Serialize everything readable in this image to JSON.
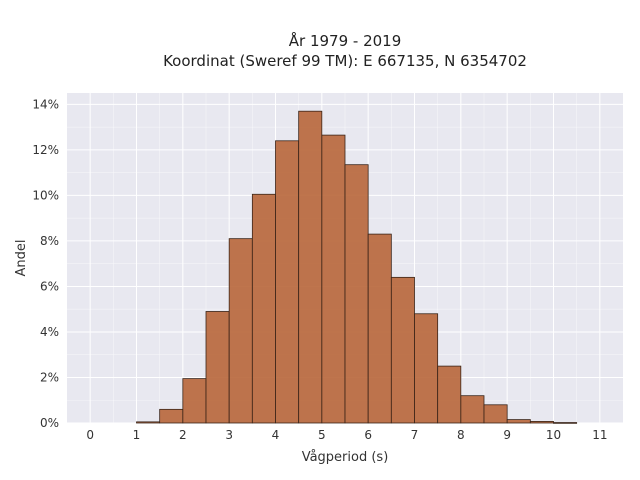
{
  "chart_data": {
    "type": "bar",
    "title": "År 1979 - 2019",
    "subtitle": "Koordinat (Sweref 99 TM): E 667135, N 6354702",
    "xlabel": "Vågperiod (s)",
    "ylabel": "Andel",
    "xlim": [
      -0.5,
      11.5
    ],
    "ylim": [
      0,
      14.5
    ],
    "x_ticks": [
      "0",
      "1",
      "2",
      "3",
      "4",
      "5",
      "6",
      "7",
      "8",
      "9",
      "10",
      "11"
    ],
    "y_ticks": [
      "0%",
      "2%",
      "4%",
      "6%",
      "8%",
      "10%",
      "12%",
      "14%"
    ],
    "bin_width": 0.5,
    "bins": [
      {
        "x0": 1.0,
        "value": 0.05
      },
      {
        "x0": 1.5,
        "value": 0.6
      },
      {
        "x0": 2.0,
        "value": 1.95
      },
      {
        "x0": 2.5,
        "value": 4.9
      },
      {
        "x0": 3.0,
        "value": 8.1
      },
      {
        "x0": 3.5,
        "value": 10.05
      },
      {
        "x0": 4.0,
        "value": 12.4
      },
      {
        "x0": 4.5,
        "value": 13.7
      },
      {
        "x0": 5.0,
        "value": 12.65
      },
      {
        "x0": 5.5,
        "value": 11.35
      },
      {
        "x0": 6.0,
        "value": 8.3
      },
      {
        "x0": 6.5,
        "value": 6.4
      },
      {
        "x0": 7.0,
        "value": 4.8
      },
      {
        "x0": 7.5,
        "value": 2.5
      },
      {
        "x0": 8.0,
        "value": 1.2
      },
      {
        "x0": 8.5,
        "value": 0.8
      },
      {
        "x0": 9.0,
        "value": 0.15
      },
      {
        "x0": 9.5,
        "value": 0.07
      },
      {
        "x0": 10.0,
        "value": 0.02
      }
    ],
    "grid": true,
    "colors": {
      "bar_fill": "#b8663a",
      "bar_stroke": "#3a2418",
      "plot_bg": "#e8e8f0",
      "grid": "#ffffff"
    }
  }
}
